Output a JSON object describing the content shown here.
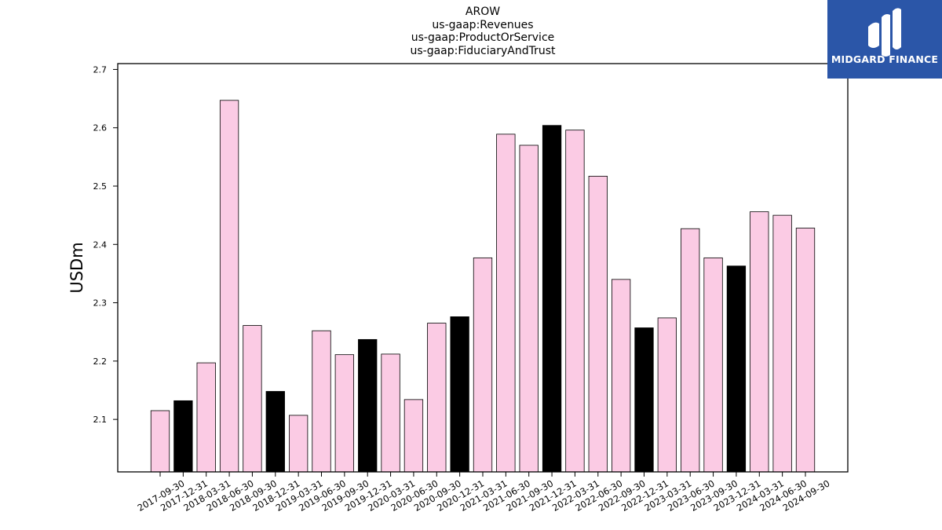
{
  "chart_data": {
    "type": "bar",
    "title_lines": [
      "AROW",
      "us-gaap:Revenues",
      "us-gaap:ProductOrService",
      "us-gaap:FiduciaryAndTrust"
    ],
    "xlabel": "",
    "ylabel": "USDm",
    "ylim": [
      2.01,
      2.71
    ],
    "yticks": [
      2.1,
      2.2,
      2.3,
      2.4,
      2.5,
      2.6,
      2.7
    ],
    "ytick_labels": [
      "2.1",
      "2.2",
      "2.3",
      "2.4",
      "2.5",
      "2.6",
      "2.7"
    ],
    "grid": false,
    "categories": [
      "2017-09-30",
      "2017-12-31",
      "2018-03-31",
      "2018-06-30",
      "2018-09-30",
      "2018-12-31",
      "2019-03-31",
      "2019-06-30",
      "2019-09-30",
      "2019-12-31",
      "2020-03-31",
      "2020-06-30",
      "2020-09-30",
      "2020-12-31",
      "2021-03-31",
      "2021-06-30",
      "2021-09-30",
      "2021-12-31",
      "2022-03-31",
      "2022-06-30",
      "2022-09-30",
      "2022-12-31",
      "2023-03-31",
      "2023-06-30",
      "2023-09-30",
      "2023-12-31",
      "2024-03-31",
      "2024-06-30",
      "2024-09-30"
    ],
    "values": [
      2.115,
      2.132,
      2.197,
      2.647,
      2.261,
      2.148,
      2.107,
      2.252,
      2.211,
      2.237,
      2.212,
      2.134,
      2.265,
      2.276,
      2.377,
      2.589,
      2.57,
      2.604,
      2.596,
      2.517,
      2.34,
      2.257,
      2.274,
      2.427,
      2.377,
      2.363,
      2.456,
      2.45,
      2.428
    ],
    "bar_colors": {
      "quarter": "#fbcbe4",
      "year_end": "#000000"
    },
    "year_end_flags": [
      false,
      true,
      false,
      false,
      false,
      true,
      false,
      false,
      false,
      true,
      false,
      false,
      false,
      true,
      false,
      false,
      false,
      true,
      false,
      false,
      false,
      true,
      false,
      false,
      false,
      true,
      false,
      false,
      false
    ]
  },
  "logo": {
    "text": "MIDGARD FINANCE",
    "background": "#2b56a8"
  }
}
